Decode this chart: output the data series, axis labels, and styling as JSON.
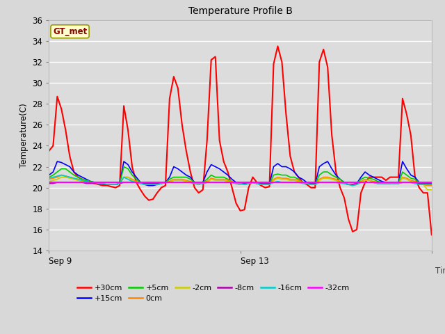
{
  "title": "Temperature Profile B",
  "ylabel": "Temperature(C)",
  "xlabel": "Time",
  "ylim": [
    14,
    36
  ],
  "yticks": [
    14,
    16,
    18,
    20,
    22,
    24,
    26,
    28,
    30,
    32,
    34,
    36
  ],
  "fig_bg": "#d8d8d8",
  "plot_bg": "#dcdcdc",
  "annotation_text": "GT_met",
  "annotation_bg": "#ffffcc",
  "annotation_border": "#999900",
  "x_start": 0,
  "x_end": 800,
  "xtick_positions": [
    0,
    400,
    800
  ],
  "xtick_labels": [
    "Sep 9",
    "Sep 13",
    ""
  ],
  "series_order": [
    "+30cm",
    "+15cm",
    "+5cm",
    "0cm",
    "-2cm",
    "-8cm",
    "-16cm",
    "-32cm"
  ],
  "series": {
    "+30cm": {
      "color": "#ff0000",
      "lw": 1.5,
      "values": [
        23.5,
        24.0,
        28.7,
        27.5,
        25.5,
        23.0,
        21.5,
        21.0,
        20.8,
        20.6,
        20.5,
        20.4,
        20.3,
        20.2,
        20.2,
        20.1,
        20.0,
        20.2,
        27.8,
        25.5,
        22.0,
        20.5,
        19.8,
        19.2,
        18.8,
        18.9,
        19.5,
        20.0,
        20.2,
        28.5,
        30.6,
        29.5,
        26.0,
        23.5,
        21.5,
        20.0,
        19.5,
        19.8,
        24.5,
        32.2,
        32.5,
        24.5,
        22.5,
        21.5,
        20.0,
        18.5,
        17.8,
        17.9,
        20.0,
        21.0,
        20.5,
        20.2,
        20.0,
        20.1,
        31.8,
        33.5,
        32.0,
        27.0,
        23.0,
        21.5,
        21.0,
        20.5,
        20.3,
        20.0,
        20.0,
        32.0,
        33.2,
        31.5,
        25.0,
        21.5,
        20.0,
        19.0,
        17.0,
        15.8,
        16.0,
        19.5,
        20.5,
        21.0,
        21.0,
        21.0,
        21.0,
        20.7,
        21.0,
        21.0,
        21.0,
        28.5,
        27.0,
        25.0,
        21.0,
        20.0,
        19.5,
        19.5,
        15.5
      ]
    },
    "+15cm": {
      "color": "#0000ff",
      "lw": 1.2,
      "values": [
        21.2,
        21.5,
        22.5,
        22.4,
        22.2,
        22.0,
        21.5,
        21.2,
        21.0,
        20.8,
        20.6,
        20.5,
        20.4,
        20.3,
        20.3,
        20.3,
        20.3,
        20.4,
        22.5,
        22.2,
        21.5,
        21.0,
        20.5,
        20.3,
        20.2,
        20.2,
        20.3,
        20.4,
        20.5,
        21.0,
        22.0,
        21.8,
        21.5,
        21.2,
        21.0,
        20.5,
        20.3,
        20.5,
        21.5,
        22.2,
        22.0,
        21.8,
        21.5,
        21.2,
        20.8,
        20.5,
        20.3,
        20.3,
        20.4,
        20.5,
        20.4,
        20.3,
        20.3,
        20.3,
        22.0,
        22.3,
        22.0,
        22.0,
        21.8,
        21.5,
        21.0,
        20.8,
        20.5,
        20.3,
        20.3,
        22.0,
        22.3,
        22.5,
        21.8,
        21.2,
        20.8,
        20.5,
        20.3,
        20.3,
        20.4,
        21.0,
        21.5,
        21.2,
        21.0,
        20.8,
        20.6,
        20.5,
        20.5,
        20.5,
        20.5,
        22.5,
        21.8,
        21.2,
        21.0,
        20.5,
        20.3,
        20.3,
        20.3
      ]
    },
    "+5cm": {
      "color": "#00cc00",
      "lw": 1.2,
      "values": [
        21.0,
        21.2,
        21.5,
        21.8,
        21.8,
        21.5,
        21.2,
        21.0,
        20.8,
        20.7,
        20.6,
        20.5,
        20.4,
        20.4,
        20.3,
        20.3,
        20.3,
        20.4,
        22.0,
        21.8,
        21.2,
        20.8,
        20.5,
        20.3,
        20.3,
        20.3,
        20.3,
        20.4,
        20.5,
        20.8,
        21.0,
        21.0,
        21.0,
        21.0,
        20.8,
        20.5,
        20.3,
        20.5,
        20.8,
        21.2,
        21.0,
        21.0,
        21.0,
        20.8,
        20.6,
        20.4,
        20.3,
        20.3,
        20.4,
        20.5,
        20.4,
        20.3,
        20.3,
        20.3,
        21.2,
        21.3,
        21.2,
        21.2,
        21.0,
        21.0,
        20.8,
        20.5,
        20.4,
        20.3,
        20.3,
        21.2,
        21.5,
        21.5,
        21.2,
        21.0,
        20.8,
        20.5,
        20.3,
        20.3,
        20.4,
        20.8,
        21.0,
        20.9,
        20.8,
        20.6,
        20.5,
        20.4,
        20.4,
        20.5,
        20.4,
        21.5,
        21.2,
        20.9,
        20.8,
        20.5,
        20.3,
        20.3,
        20.3
      ]
    },
    "0cm": {
      "color": "#ff8800",
      "lw": 1.2,
      "values": [
        20.8,
        20.9,
        21.0,
        21.2,
        21.1,
        21.0,
        20.9,
        20.8,
        20.7,
        20.6,
        20.5,
        20.5,
        20.4,
        20.4,
        20.3,
        20.3,
        20.3,
        20.4,
        21.0,
        21.0,
        20.8,
        20.6,
        20.4,
        20.3,
        20.3,
        20.3,
        20.3,
        20.4,
        20.5,
        20.6,
        20.8,
        20.8,
        20.8,
        20.7,
        20.6,
        20.4,
        20.3,
        20.5,
        20.6,
        20.9,
        20.8,
        20.8,
        20.8,
        20.7,
        20.6,
        20.4,
        20.3,
        20.3,
        20.4,
        20.5,
        20.4,
        20.3,
        20.3,
        20.3,
        20.8,
        21.0,
        20.9,
        20.9,
        20.8,
        20.8,
        20.7,
        20.5,
        20.4,
        20.3,
        20.3,
        20.8,
        21.0,
        21.0,
        20.9,
        20.8,
        20.6,
        20.4,
        20.3,
        20.3,
        20.4,
        20.6,
        20.8,
        20.7,
        20.6,
        20.5,
        20.4,
        20.4,
        20.4,
        20.5,
        20.4,
        21.0,
        20.9,
        20.7,
        20.6,
        20.4,
        20.3,
        20.2,
        20.2
      ]
    },
    "-2cm": {
      "color": "#cccc00",
      "lw": 1.2,
      "values": [
        20.6,
        20.7,
        20.8,
        21.0,
        21.0,
        20.9,
        20.8,
        20.7,
        20.6,
        20.5,
        20.5,
        20.4,
        20.4,
        20.3,
        20.3,
        20.3,
        20.3,
        20.4,
        21.0,
        21.0,
        20.7,
        20.5,
        20.4,
        20.3,
        20.3,
        20.3,
        20.3,
        20.4,
        20.5,
        20.5,
        20.7,
        20.7,
        20.7,
        20.6,
        20.5,
        20.4,
        20.3,
        20.5,
        20.5,
        20.8,
        20.7,
        20.7,
        20.7,
        20.6,
        20.5,
        20.4,
        20.3,
        20.3,
        20.4,
        20.5,
        20.4,
        20.3,
        20.3,
        20.3,
        20.7,
        20.9,
        20.8,
        20.8,
        20.7,
        20.7,
        20.6,
        20.5,
        20.4,
        20.3,
        20.3,
        20.7,
        20.9,
        20.9,
        20.8,
        20.7,
        20.5,
        20.4,
        20.3,
        20.2,
        20.3,
        20.5,
        20.7,
        20.7,
        20.5,
        20.4,
        20.4,
        20.4,
        20.4,
        20.4,
        20.4,
        20.9,
        20.8,
        20.6,
        20.5,
        20.4,
        20.3,
        19.8,
        19.8
      ]
    },
    "-8cm": {
      "color": "#aa00aa",
      "lw": 1.2,
      "values": [
        20.4,
        20.4,
        20.5,
        20.5,
        20.5,
        20.5,
        20.5,
        20.5,
        20.5,
        20.4,
        20.4,
        20.4,
        20.4,
        20.3,
        20.3,
        20.3,
        20.3,
        20.4,
        20.5,
        20.5,
        20.5,
        20.5,
        20.4,
        20.4,
        20.4,
        20.4,
        20.4,
        20.4,
        20.5,
        20.5,
        20.5,
        20.5,
        20.5,
        20.5,
        20.5,
        20.4,
        20.4,
        20.4,
        20.5,
        20.5,
        20.5,
        20.5,
        20.5,
        20.5,
        20.5,
        20.4,
        20.4,
        20.4,
        20.4,
        20.5,
        20.4,
        20.4,
        20.4,
        20.4,
        20.5,
        20.5,
        20.5,
        20.5,
        20.5,
        20.5,
        20.5,
        20.5,
        20.4,
        20.4,
        20.4,
        20.5,
        20.5,
        20.5,
        20.5,
        20.5,
        20.5,
        20.4,
        20.3,
        20.3,
        20.4,
        20.5,
        20.5,
        20.5,
        20.5,
        20.4,
        20.4,
        20.4,
        20.4,
        20.4,
        20.4,
        20.5,
        20.5,
        20.5,
        20.4,
        20.4,
        20.4,
        20.4,
        20.4
      ]
    },
    "-16cm": {
      "color": "#00cccc",
      "lw": 1.2,
      "values": [
        20.9,
        21.0,
        21.1,
        21.2,
        21.1,
        21.0,
        20.9,
        20.8,
        20.7,
        20.6,
        20.5,
        20.5,
        20.4,
        20.4,
        20.3,
        20.3,
        20.3,
        20.4,
        21.0,
        20.8,
        20.6,
        20.5,
        20.4,
        20.3,
        20.3,
        20.3,
        20.3,
        20.4,
        20.5,
        20.5,
        20.5,
        20.5,
        20.5,
        20.5,
        20.5,
        20.4,
        20.4,
        20.4,
        20.5,
        20.5,
        20.5,
        20.5,
        20.5,
        20.5,
        20.5,
        20.4,
        20.4,
        20.3,
        20.4,
        20.5,
        20.4,
        20.3,
        20.3,
        20.3,
        20.5,
        20.6,
        20.5,
        20.5,
        20.5,
        20.5,
        20.5,
        20.4,
        20.4,
        20.3,
        20.3,
        20.5,
        20.5,
        20.5,
        20.5,
        20.5,
        20.4,
        20.4,
        20.3,
        20.2,
        20.3,
        20.5,
        20.5,
        20.5,
        20.5,
        20.4,
        20.4,
        20.4,
        20.4,
        20.4,
        20.4,
        20.5,
        20.5,
        20.5,
        20.4,
        20.3,
        20.3,
        20.3,
        20.3
      ]
    },
    "-32cm": {
      "color": "#ff00ff",
      "lw": 1.5,
      "values": [
        20.5,
        20.5,
        20.5,
        20.5,
        20.5,
        20.5,
        20.5,
        20.5,
        20.5,
        20.5,
        20.5,
        20.5,
        20.5,
        20.5,
        20.5,
        20.5,
        20.5,
        20.5,
        20.5,
        20.5,
        20.5,
        20.5,
        20.5,
        20.5,
        20.5,
        20.5,
        20.5,
        20.5,
        20.5,
        20.5,
        20.5,
        20.5,
        20.5,
        20.5,
        20.5,
        20.5,
        20.5,
        20.5,
        20.5,
        20.5,
        20.5,
        20.5,
        20.5,
        20.5,
        20.5,
        20.5,
        20.5,
        20.5,
        20.5,
        20.5,
        20.5,
        20.5,
        20.5,
        20.5,
        20.5,
        20.5,
        20.5,
        20.5,
        20.5,
        20.5,
        20.5,
        20.5,
        20.5,
        20.5,
        20.5,
        20.5,
        20.5,
        20.5,
        20.5,
        20.5,
        20.5,
        20.5,
        20.5,
        20.5,
        20.5,
        20.5,
        20.5,
        20.5,
        20.5,
        20.5,
        20.5,
        20.5,
        20.5,
        20.5,
        20.5,
        20.5,
        20.5,
        20.5,
        20.5,
        20.5,
        20.5,
        20.5,
        20.5
      ]
    }
  },
  "legend_row1": [
    {
      "label": "+30cm",
      "color": "#ff0000"
    },
    {
      "label": "+15cm",
      "color": "#0000ff"
    },
    {
      "label": "+5cm",
      "color": "#00cc00"
    },
    {
      "label": "0cm",
      "color": "#ff8800"
    },
    {
      "label": "-2cm",
      "color": "#cccc00"
    },
    {
      "label": "-8cm",
      "color": "#aa00aa"
    }
  ],
  "legend_row2": [
    {
      "label": "-16cm",
      "color": "#00cccc"
    },
    {
      "label": "-32cm",
      "color": "#ff00ff"
    }
  ]
}
